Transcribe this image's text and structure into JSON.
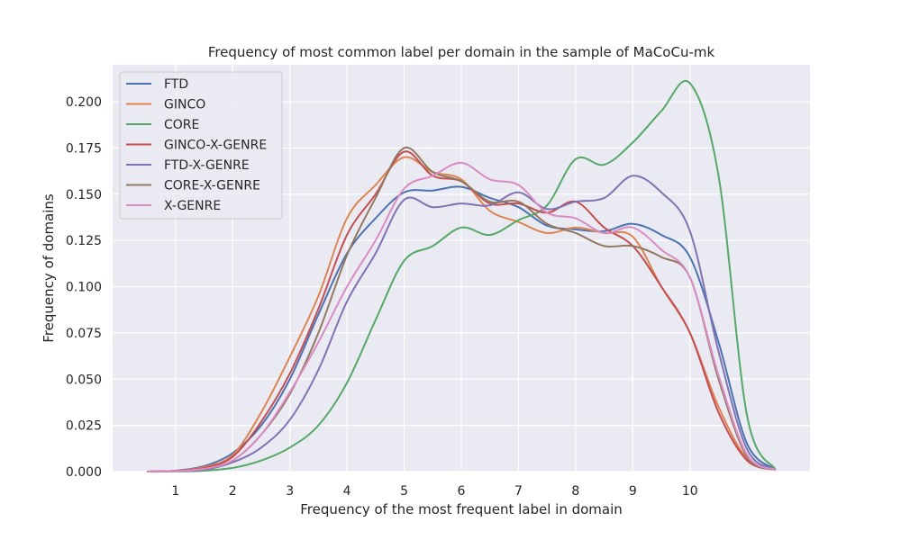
{
  "chart_data": {
    "type": "line",
    "title": "Frequency of most common label per domain in the sample of MaCoCu-mk",
    "xlabel": "Frequency of the most frequent label in domain",
    "ylabel": "Frequency of domains",
    "xlim": [
      -0.1,
      12.1
    ],
    "ylim": [
      0,
      0.22
    ],
    "xticks": [
      1,
      2,
      3,
      4,
      5,
      6,
      7,
      8,
      9,
      10
    ],
    "xtick_labels": [
      "1",
      "2",
      "3",
      "4",
      "5",
      "6",
      "7",
      "8",
      "9",
      "10"
    ],
    "yticks": [
      0,
      0.025,
      0.05,
      0.075,
      0.1,
      0.125,
      0.15,
      0.175,
      0.2
    ],
    "ytick_labels": [
      "0.000",
      "0.025",
      "0.050",
      "0.075",
      "0.100",
      "0.125",
      "0.150",
      "0.175",
      "0.200"
    ],
    "grid": true,
    "background": "#eaeaf2",
    "legend_position": "top-left",
    "series": [
      {
        "name": "FTD",
        "color": "#4c72b0",
        "x": [
          0.5,
          1,
          1.5,
          2,
          2.5,
          3,
          3.5,
          4,
          4.5,
          5,
          5.5,
          6,
          6.5,
          7,
          7.5,
          8,
          8.5,
          9,
          9.5,
          10,
          10.5,
          11,
          11.5
        ],
        "y": [
          0.0,
          0.0005,
          0.003,
          0.01,
          0.025,
          0.05,
          0.085,
          0.118,
          0.137,
          0.151,
          0.152,
          0.154,
          0.148,
          0.143,
          0.133,
          0.131,
          0.13,
          0.134,
          0.128,
          0.116,
          0.07,
          0.015,
          0.001
        ]
      },
      {
        "name": "GINCO",
        "color": "#dd8452",
        "x": [
          0.5,
          1,
          1.5,
          2,
          2.5,
          3,
          3.5,
          4,
          4.5,
          5,
          5.5,
          6,
          6.5,
          7,
          7.5,
          8,
          8.5,
          9,
          9.5,
          10,
          10.5,
          11,
          11.5
        ],
        "y": [
          0.0,
          0.0004,
          0.0025,
          0.009,
          0.032,
          0.062,
          0.095,
          0.137,
          0.155,
          0.17,
          0.162,
          0.158,
          0.141,
          0.135,
          0.129,
          0.132,
          0.129,
          0.127,
          0.1,
          0.075,
          0.035,
          0.007,
          0.001
        ]
      },
      {
        "name": "CORE",
        "color": "#55a868",
        "x": [
          0.5,
          1,
          1.5,
          2,
          2.5,
          3,
          3.5,
          4,
          4.5,
          5,
          5.5,
          6,
          6.5,
          7,
          7.5,
          8,
          8.5,
          9,
          9.5,
          10,
          10.5,
          11,
          11.5
        ],
        "y": [
          0.0,
          0.0001,
          0.0005,
          0.002,
          0.006,
          0.013,
          0.025,
          0.048,
          0.082,
          0.114,
          0.122,
          0.132,
          0.128,
          0.136,
          0.144,
          0.169,
          0.166,
          0.178,
          0.195,
          0.21,
          0.16,
          0.03,
          0.001
        ]
      },
      {
        "name": "GINCO-X-GENRE",
        "color": "#c44e52",
        "x": [
          0.5,
          1,
          1.5,
          2,
          2.5,
          3,
          3.5,
          4,
          4.5,
          5,
          5.5,
          6,
          6.5,
          7,
          7.5,
          8,
          8.5,
          9,
          9.5,
          10,
          10.5,
          11,
          11.5
        ],
        "y": [
          0.0,
          0.0004,
          0.002,
          0.008,
          0.027,
          0.053,
          0.088,
          0.128,
          0.15,
          0.173,
          0.16,
          0.157,
          0.145,
          0.145,
          0.14,
          0.146,
          0.132,
          0.122,
          0.1,
          0.075,
          0.032,
          0.006,
          0.001
        ]
      },
      {
        "name": "FTD-X-GENRE",
        "color": "#8172b3",
        "x": [
          0.5,
          1,
          1.5,
          2,
          2.5,
          3,
          3.5,
          4,
          4.5,
          5,
          5.5,
          6,
          6.5,
          7,
          7.5,
          8,
          8.5,
          9,
          9.5,
          10,
          10.5,
          11,
          11.5
        ],
        "y": [
          0.0,
          0.0002,
          0.001,
          0.005,
          0.013,
          0.028,
          0.055,
          0.092,
          0.118,
          0.147,
          0.143,
          0.145,
          0.144,
          0.151,
          0.142,
          0.146,
          0.148,
          0.16,
          0.151,
          0.13,
          0.065,
          0.012,
          0.001
        ]
      },
      {
        "name": "CORE-X-GENRE",
        "color": "#937860",
        "x": [
          0.5,
          1,
          1.5,
          2,
          2.5,
          3,
          3.5,
          4,
          4.5,
          5,
          5.5,
          6,
          6.5,
          7,
          7.5,
          8,
          8.5,
          9,
          9.5,
          10,
          10.5,
          11,
          11.5
        ],
        "y": [
          0.0,
          0.0003,
          0.0015,
          0.006,
          0.02,
          0.042,
          0.075,
          0.117,
          0.148,
          0.175,
          0.162,
          0.157,
          0.146,
          0.146,
          0.134,
          0.129,
          0.122,
          0.122,
          0.116,
          0.105,
          0.05,
          0.008,
          0.001
        ]
      },
      {
        "name": "X-GENRE",
        "color": "#da8bc3",
        "x": [
          0.5,
          1,
          1.5,
          2,
          2.5,
          3,
          3.5,
          4,
          4.5,
          5,
          5.5,
          6,
          6.5,
          7,
          7.5,
          8,
          8.5,
          9,
          9.5,
          10,
          10.5,
          11,
          11.5
        ],
        "y": [
          0.0,
          0.0003,
          0.0015,
          0.006,
          0.02,
          0.043,
          0.07,
          0.1,
          0.125,
          0.153,
          0.16,
          0.167,
          0.158,
          0.155,
          0.14,
          0.137,
          0.129,
          0.132,
          0.12,
          0.105,
          0.052,
          0.009,
          0.001
        ]
      }
    ]
  }
}
